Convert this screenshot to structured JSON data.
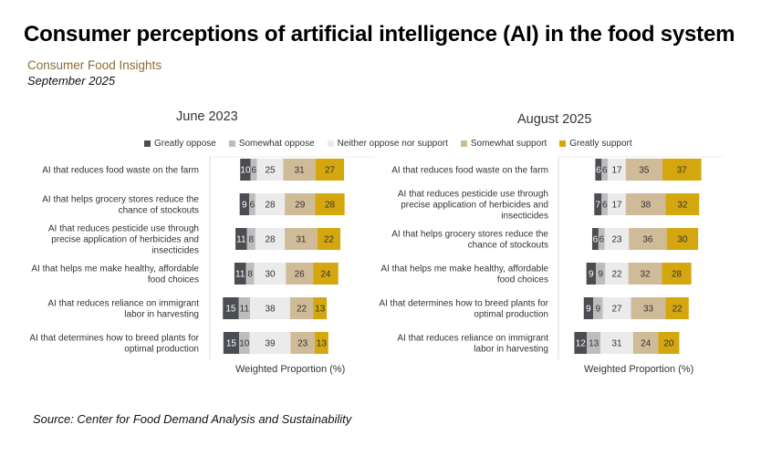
{
  "title": "Consumer perceptions of artificial intelligence (AI) in the food system",
  "subtitle": "Consumer Food Insights",
  "date": "September 2025",
  "source": "Source:  Center for Food Demand Analysis and Sustainability",
  "colors": {
    "greatly_oppose": "#4b4d52",
    "somewhat_oppose": "#bdbdbd",
    "neither": "#ebebeb",
    "somewhat_support": "#cfbb98",
    "greatly_support": "#d4a70e"
  },
  "legend": [
    "Greatly oppose",
    "Somewhat oppose",
    "Neither oppose nor support",
    "Somewhat support",
    "Greatly support"
  ],
  "chart_data": [
    {
      "type": "bar",
      "orientation": "horizontal-stacked-diverging",
      "title": "June 2023",
      "xlabel": "Weighted Proportion (%)",
      "legend_position": "top",
      "series_names": [
        "Greatly oppose",
        "Somewhat oppose",
        "Neither oppose nor support",
        "Somewhat support",
        "Greatly support"
      ],
      "categories": [
        "AI that reduces food waste on the farm",
        "AI that helps grocery stores reduce the chance of stockouts",
        "AI that reduces pesticide use through precise application of herbicides and insecticides",
        "AI that helps me make healthy, affordable food choices",
        "AI that reduces reliance on immigrant labor in harvesting",
        "AI that determines how to breed plants for optimal production"
      ],
      "category_lines": [
        [
          "AI that reduces food waste on the farm"
        ],
        [
          "AI that helps grocery stores reduce the",
          "chance of stockouts"
        ],
        [
          "AI that reduces pesticide use through",
          "precise application of herbicides and",
          "insecticides"
        ],
        [
          "AI that helps me make healthy, affordable",
          "food choices"
        ],
        [
          "AI that reduces reliance on immigrant",
          "labor in harvesting"
        ],
        [
          "AI that determines how to breed plants for",
          "optimal production"
        ]
      ],
      "values": [
        [
          10,
          6,
          25,
          31,
          27
        ],
        [
          9,
          6,
          28,
          29,
          28
        ],
        [
          11,
          8,
          28,
          31,
          22
        ],
        [
          11,
          8,
          30,
          26,
          24
        ],
        [
          15,
          11,
          38,
          22,
          13
        ],
        [
          15,
          10,
          39,
          23,
          13
        ]
      ]
    },
    {
      "type": "bar",
      "orientation": "horizontal-stacked-diverging",
      "title": "August 2025",
      "xlabel": "Weighted Proportion (%)",
      "legend_position": "top",
      "series_names": [
        "Greatly oppose",
        "Somewhat oppose",
        "Neither oppose nor support",
        "Somewhat support",
        "Greatly support"
      ],
      "categories": [
        "AI that reduces food waste on the farm",
        "AI that reduces pesticide use through precise application of herbicides and insecticides",
        "AI that helps grocery stores reduce the chance of stockouts",
        "AI that helps me make healthy, affordable food choices",
        "AI that determines how to breed plants for optimal production",
        "AI that reduces reliance on immigrant labor in harvesting"
      ],
      "category_lines": [
        [
          "AI that reduces food waste on the farm"
        ],
        [
          "AI that reduces pesticide use through",
          "precise application of herbicides and",
          "insecticides"
        ],
        [
          "AI that helps grocery stores reduce the",
          "chance of stockouts"
        ],
        [
          "AI that helps me make healthy, affordable",
          "food choices"
        ],
        [
          "AI that determines how to breed plants for",
          "optimal production"
        ],
        [
          "AI that reduces reliance on immigrant",
          "labor in harvesting"
        ]
      ],
      "values": [
        [
          6,
          6,
          17,
          35,
          37
        ],
        [
          7,
          6,
          17,
          38,
          32
        ],
        [
          6,
          6,
          23,
          36,
          30
        ],
        [
          9,
          9,
          22,
          32,
          28
        ],
        [
          9,
          9,
          27,
          33,
          22
        ],
        [
          12,
          13,
          31,
          24,
          20
        ]
      ]
    }
  ]
}
